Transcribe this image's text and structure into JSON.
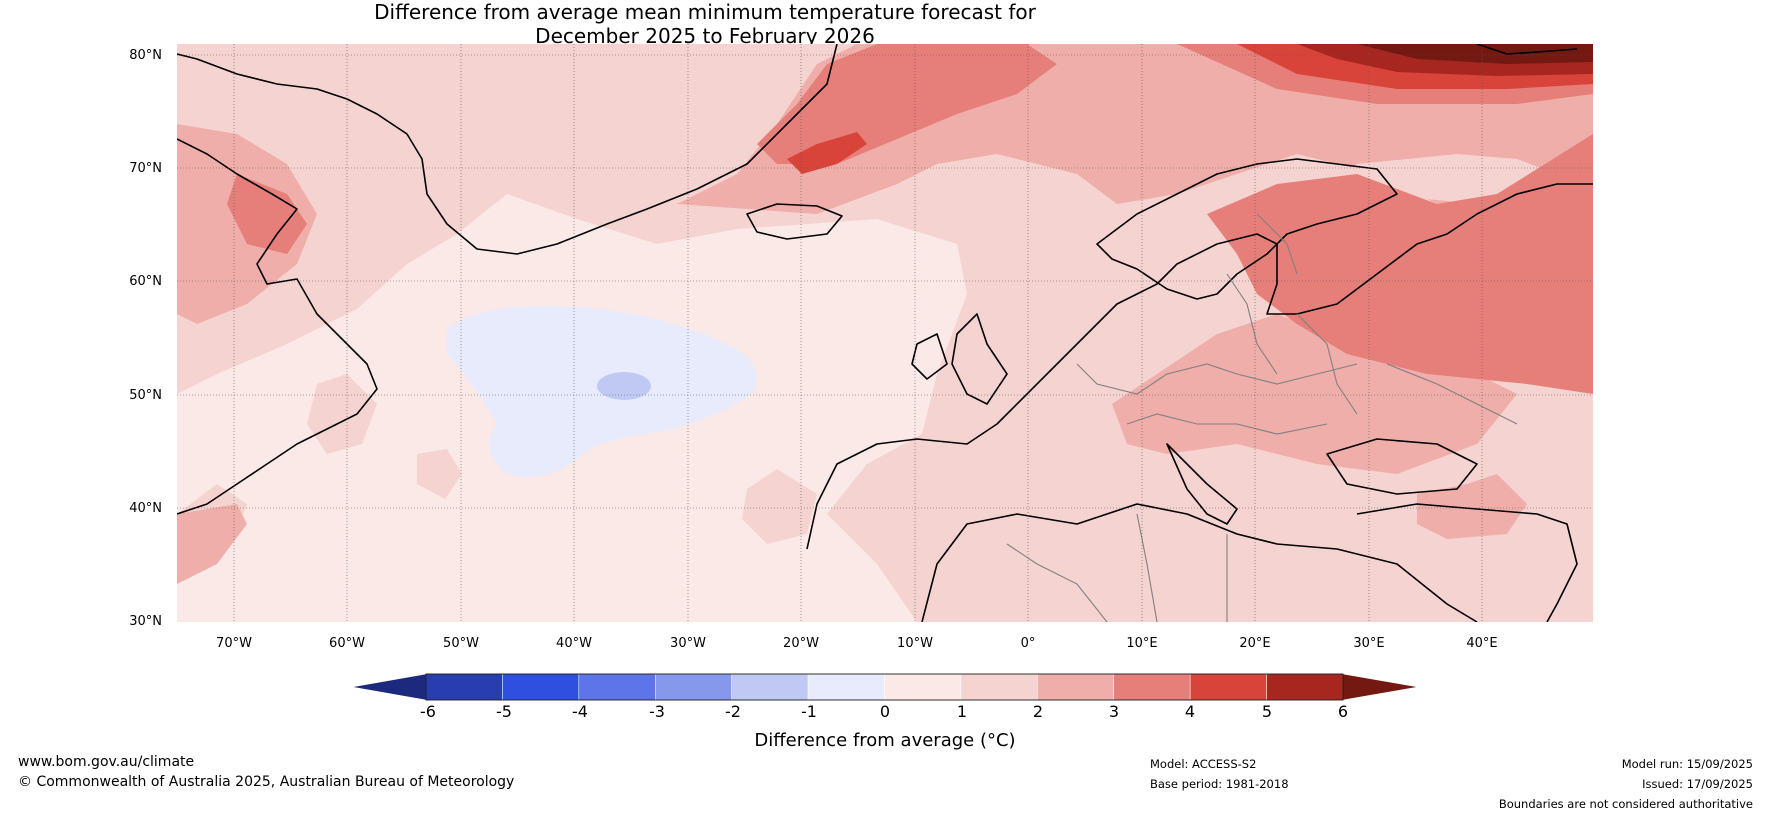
{
  "title": {
    "line1": "Difference from average mean minimum temperature forecast for",
    "line2": "December 2025 to February 2026"
  },
  "map": {
    "lat_labels": [
      "80°N",
      "70°N",
      "60°N",
      "50°N",
      "40°N",
      "30°N"
    ],
    "lon_labels": [
      "70°W",
      "60°W",
      "50°W",
      "40°W",
      "30°W",
      "20°W",
      "10°W",
      "0°",
      "10°E",
      "20°E",
      "30°E",
      "40°E"
    ],
    "lat_range": [
      30,
      81
    ],
    "lon_range": [
      -75,
      50
    ],
    "anomaly_regions": [
      {
        "region": "Barents Sea / Svalbard",
        "value_range": "5 to 6+"
      },
      {
        "region": "Scandinavia and Western Russia",
        "value_range": "3 to 4"
      },
      {
        "region": "Denmark Strait",
        "value_range": "4 to 5"
      },
      {
        "region": "North Atlantic south of Greenland",
        "value_range": "-1 to 0"
      },
      {
        "region": "Central North Atlantic",
        "value_range": "-2 to -1"
      }
    ]
  },
  "colorbar": {
    "ticks": [
      "-6",
      "-5",
      "-4",
      "-3",
      "-2",
      "-1",
      "0",
      "1",
      "2",
      "3",
      "4",
      "5",
      "6"
    ],
    "colors": [
      "#1b2a7d",
      "#273db0",
      "#2e4fe0",
      "#5d75e8",
      "#8698ec",
      "#c0c9f4",
      "#e8ebfb",
      "#fbe9e7",
      "#f5d3d1",
      "#efaeaa",
      "#e67f79",
      "#d9443a",
      "#a82620",
      "#741912"
    ],
    "label": "Difference from average (°C)"
  },
  "footer": {
    "website": "www.bom.gov.au/climate",
    "copyright": "© Commonwealth of Australia 2025, Australian Bureau of Meteorology",
    "model": "Model: ACCESS-S2",
    "base_period": "Base period: 1981-2018",
    "model_run": "Model run: 15/09/2025",
    "issued": "Issued: 17/09/2025",
    "disclaimer": "Boundaries are not considered authoritative"
  }
}
